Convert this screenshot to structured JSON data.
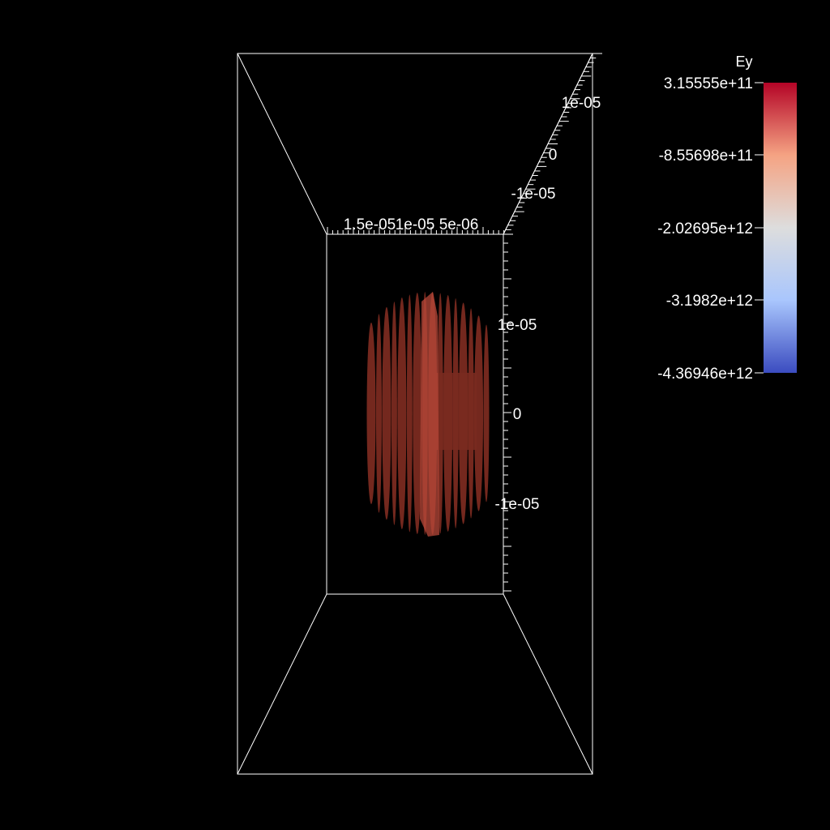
{
  "colors": {
    "background": "#000000",
    "axes": "#ffffff",
    "isosurface": "#7a2a20",
    "isosurface_highlight": "#b8483a"
  },
  "colorbar": {
    "title": "Ey",
    "colormap": [
      "#b40426",
      "#f5a383",
      "#dddddd",
      "#a9c6fd",
      "#3b4cc0"
    ],
    "range": [
      -4369460000000.0,
      315555000000.0
    ],
    "labels": [
      "3.15555e+11",
      "-8.55698e+11",
      "-2.02695e+12",
      "-3.1982e+12",
      "-4.36946e+12"
    ]
  },
  "chart_data": {
    "type": "3d-isosurface",
    "title": "",
    "scalar": "Ey",
    "axes": {
      "x": {
        "tick_labels": [
          "1.5e-05",
          "1e-05",
          "5e-06"
        ]
      },
      "y": {
        "tick_labels": [
          "1e-05",
          "0",
          "-1e-05"
        ]
      },
      "z": {
        "tick_labels": [
          "1e-05",
          "0",
          "-1e-05"
        ]
      }
    },
    "isosurface": {
      "slices": 16
    },
    "grid": false,
    "legend": "right"
  }
}
